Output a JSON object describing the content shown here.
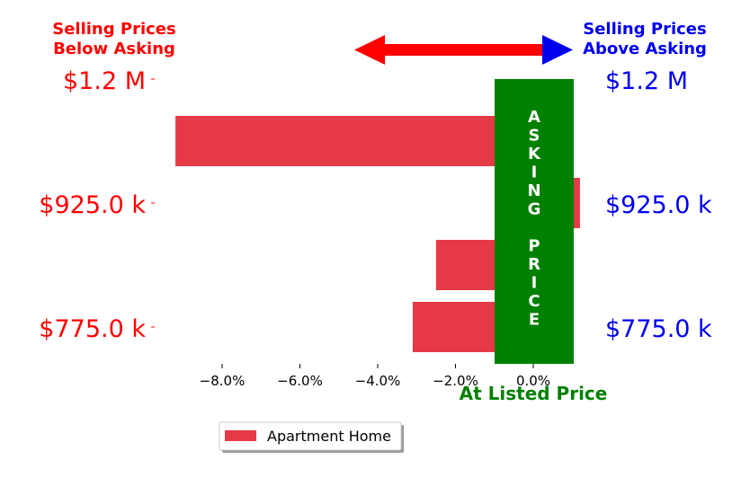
{
  "colors": {
    "below": "#ff0000",
    "above": "#0000ee",
    "bar": "#e63946",
    "asking_box": "#008000",
    "listed_label": "#008000"
  },
  "header_left": [
    "Selling Prices",
    "Below Asking"
  ],
  "header_right": [
    "Selling Prices",
    "Above Asking"
  ],
  "left_price_labels": [
    "$1.2 M",
    "$925.0 k",
    "$775.0 k"
  ],
  "right_price_labels": [
    "$1.2 M",
    "$925.0 k",
    "$775.0 k"
  ],
  "asking_box_text": "ASKING PRICE",
  "listed_price_label": "At Listed Price",
  "legend": {
    "label": "Apartment Home"
  },
  "chart_data": {
    "type": "bar",
    "orientation": "horizontal",
    "series": [
      {
        "name": "Apartment Home",
        "values": [
          -9.2,
          1.2,
          -2.5,
          -3.1
        ]
      }
    ],
    "xlim": [
      -9.5,
      1.2
    ],
    "xticks": [
      -8.0,
      -6.0,
      -4.0,
      -2.0,
      0.0
    ],
    "xtick_labels": [
      "−8.0%",
      "−6.0%",
      "−4.0%",
      "−2.0%",
      "0.0%"
    ],
    "grid": false,
    "legend_position": "bottom-left"
  }
}
